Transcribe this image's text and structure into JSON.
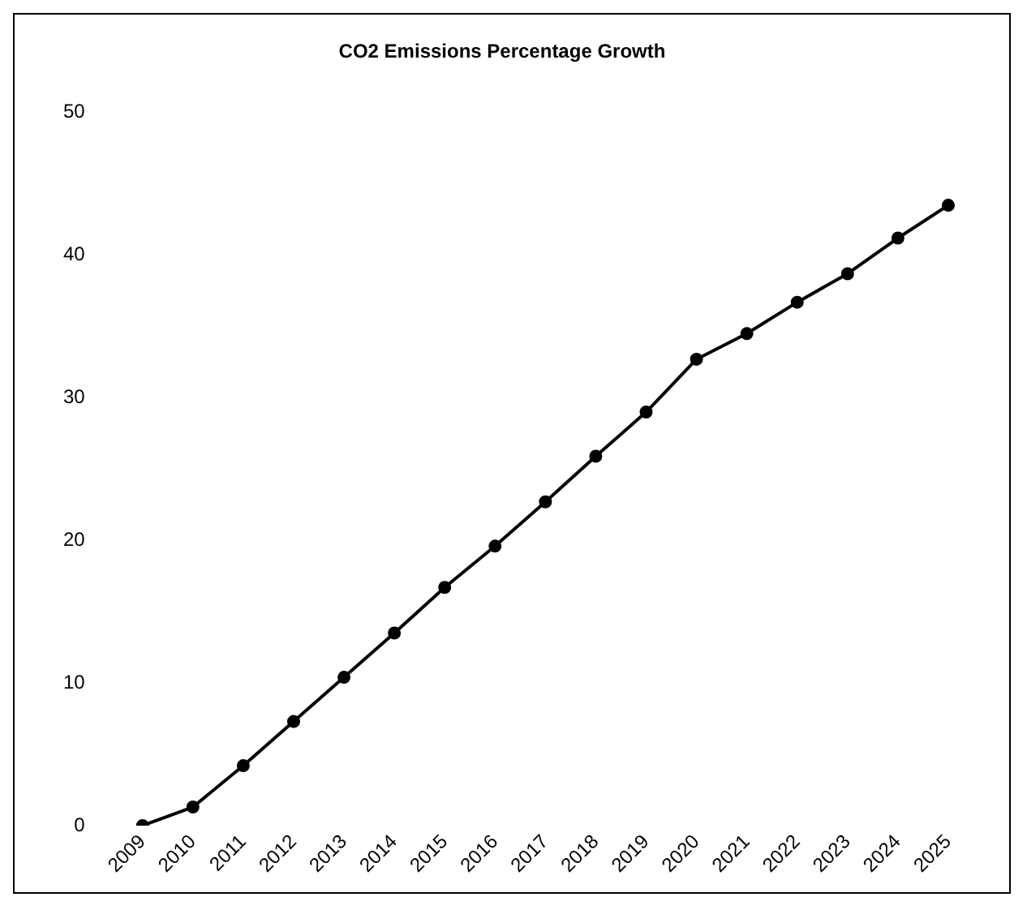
{
  "chart_data": {
    "type": "line",
    "title": "CO2 Emissions Percentage Growth",
    "categories": [
      "2009",
      "2010",
      "2011",
      "2012",
      "2013",
      "2014",
      "2015",
      "2016",
      "2017",
      "2018",
      "2019",
      "2020",
      "2021",
      "2022",
      "2023",
      "2024",
      "2025"
    ],
    "series": [
      {
        "color": "#000000",
        "values": [
          0,
          1.3,
          4.2,
          7.3,
          10.4,
          13.5,
          16.7,
          19.6,
          22.7,
          25.9,
          29.0,
          32.7,
          34.5,
          36.7,
          38.7,
          41.2,
          43.5
        ]
      }
    ],
    "ylim": [
      0,
      50
    ],
    "yticks": [
      0,
      10,
      20,
      30,
      40,
      50
    ],
    "grid": false,
    "legend": false,
    "marker": "circle",
    "line_style": "solid"
  }
}
